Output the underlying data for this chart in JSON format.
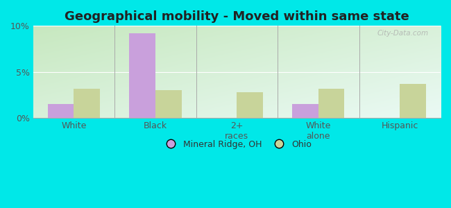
{
  "title": "Geographical mobility - Moved within same state",
  "categories": [
    "White",
    "Black",
    "2+\nraces",
    "White\nalone",
    "Hispanic"
  ],
  "mineral_ridge": [
    1.5,
    9.2,
    0,
    1.5,
    0
  ],
  "ohio": [
    3.2,
    3.0,
    2.8,
    3.2,
    3.7
  ],
  "bar_color_mineral": "#c9a0dc",
  "bar_color_ohio": "#c8d49a",
  "ylim": [
    0,
    10
  ],
  "yticks": [
    0,
    5,
    10
  ],
  "ytick_labels": [
    "0%",
    "5%",
    "10%"
  ],
  "background_color": "#00e8e8",
  "legend_label_1": "Mineral Ridge, OH",
  "legend_label_2": "Ohio",
  "watermark": "City-Data.com",
  "bar_width": 0.32,
  "grad_top_left": "#c8e8c0",
  "grad_bottom_right": "#e8f8f0"
}
